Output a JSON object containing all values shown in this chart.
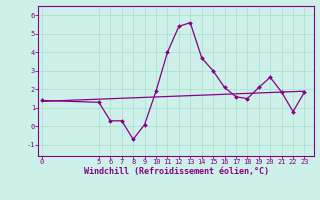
{
  "title": "",
  "xlabel": "Windchill (Refroidissement éolien,°C)",
  "background_color": "#cdf0e8",
  "grid_color": "#a8ddd0",
  "line_color": "#880088",
  "spine_color": "#880088",
  "x_ticks": [
    0,
    5,
    6,
    7,
    8,
    9,
    10,
    11,
    12,
    13,
    14,
    15,
    16,
    17,
    18,
    19,
    20,
    21,
    22,
    23
  ],
  "y_ticks": [
    -1,
    0,
    1,
    2,
    3,
    4,
    5,
    6
  ],
  "ylim": [
    -1.6,
    6.5
  ],
  "xlim": [
    -0.3,
    23.8
  ],
  "windchill_x": [
    0,
    5,
    6,
    7,
    8,
    9,
    10,
    11,
    12,
    13,
    14,
    15,
    16,
    17,
    18,
    19,
    20,
    21,
    22,
    23
  ],
  "windchill_y": [
    1.4,
    1.3,
    0.3,
    0.3,
    -0.7,
    0.1,
    1.9,
    4.0,
    5.4,
    5.6,
    3.7,
    3.0,
    2.1,
    1.6,
    1.5,
    2.1,
    2.65,
    1.85,
    0.8,
    1.85
  ],
  "trend_x": [
    0,
    23
  ],
  "trend_y": [
    1.35,
    1.9
  ],
  "tick_fontsize": 5,
  "label_fontsize": 6,
  "marker_size": 2.0,
  "line_width": 0.9
}
